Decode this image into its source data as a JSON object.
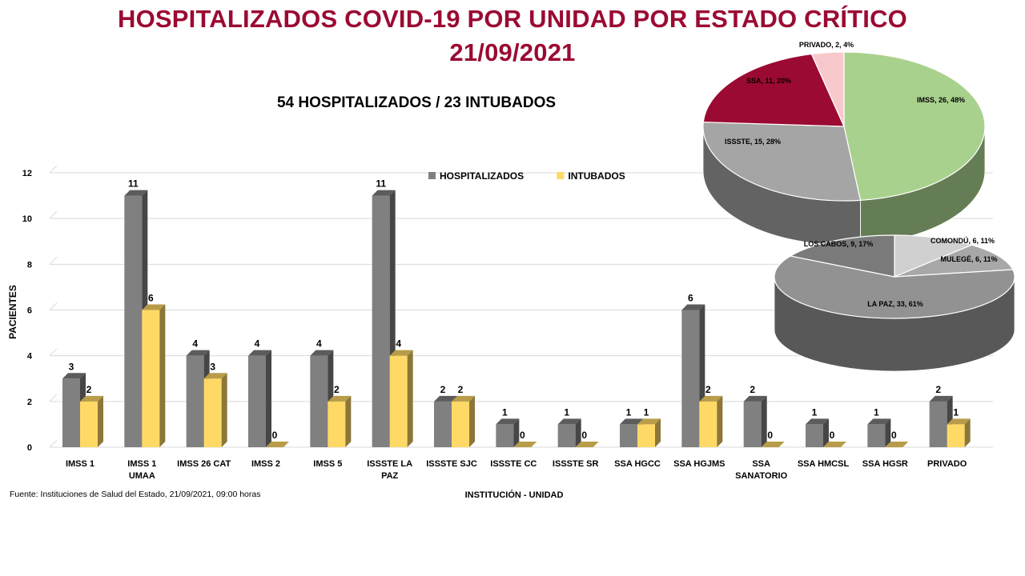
{
  "header": {
    "title_line1": "HOSPITALIZADOS COVID-19 POR UNIDAD POR ESTADO CRÍTICO",
    "title_line2": "21/09/2021",
    "summary": "54 HOSPITALIZADOS / 23 INTUBADOS"
  },
  "footer": {
    "source": "Fuente: Instituciones de Salud del Estado, 21/09/2021, 09:00 horas"
  },
  "colors": {
    "title": "#9b0a32",
    "hospitalizados": "#808080",
    "intubados": "#ffd966"
  },
  "chart_data": [
    {
      "type": "bar",
      "xlabel": "INSTITUCIÓN - UNIDAD",
      "ylabel": "PACIENTES",
      "ylim": [
        0,
        12
      ],
      "yticks": [
        "0",
        "2",
        "4",
        "6",
        "8",
        "10",
        "12"
      ],
      "grid": true,
      "legend": "top-center",
      "categories": [
        [
          "IMSS 1"
        ],
        [
          "IMSS 1",
          "UMAA"
        ],
        [
          "IMSS 26 CAT"
        ],
        [
          "IMSS 2"
        ],
        [
          "IMSS 5"
        ],
        [
          "ISSSTE LA",
          "PAZ"
        ],
        [
          "ISSSTE SJC"
        ],
        [
          "ISSSTE CC"
        ],
        [
          "ISSSTE SR"
        ],
        [
          "SSA HGCC"
        ],
        [
          "SSA HGJMS"
        ],
        [
          "SSA",
          "SANATORIO"
        ],
        [
          "SSA HMCSL"
        ],
        [
          "SSA HGSR"
        ],
        [
          "PRIVADO"
        ]
      ],
      "series": [
        {
          "name": "HOSPITALIZADOS",
          "color": "#808080",
          "values": [
            3,
            11,
            4,
            4,
            4,
            11,
            2,
            1,
            1,
            1,
            6,
            2,
            1,
            1,
            2
          ]
        },
        {
          "name": "INTUBADOS",
          "color": "#ffd966",
          "values": [
            2,
            6,
            3,
            0,
            2,
            4,
            2,
            0,
            0,
            1,
            2,
            0,
            0,
            0,
            1
          ]
        }
      ]
    },
    {
      "type": "pie",
      "slices": [
        {
          "label": "IMSS, 26, 48%",
          "value": 26,
          "color": "#a9d18e"
        },
        {
          "label": "ISSSTE, 15, 28%",
          "value": 15,
          "color": "#a5a5a5"
        },
        {
          "label": "SSA, 11, 20%",
          "value": 11,
          "color": "#9b0a32"
        },
        {
          "label": "PRIVADO, 2, 4%",
          "value": 2,
          "color": "#f8c9cc"
        }
      ]
    },
    {
      "type": "pie",
      "slices": [
        {
          "label": "COMONDÚ, 6, 11%",
          "value": 6,
          "color": "#d0d0d0"
        },
        {
          "label": "MULEGÉ, 6, 11%",
          "value": 6,
          "color": "#a8a8a8"
        },
        {
          "label": "LA PAZ, 33, 61%",
          "value": 33,
          "color": "#929292"
        },
        {
          "label": "LOS CABOS, 9, 17%",
          "value": 9,
          "color": "#7a7a7a"
        }
      ]
    }
  ]
}
